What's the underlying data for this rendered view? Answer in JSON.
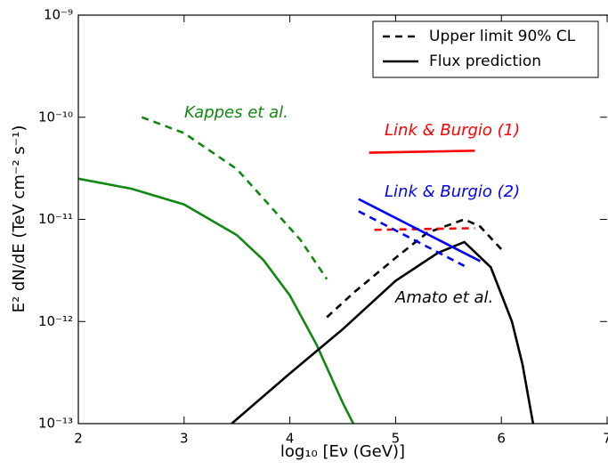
{
  "chart_data": {
    "type": "line",
    "xlabel": "log₁₀ [Eν (GeV)]",
    "ylabel": "E² dN/dE (TeV cm⁻² s⁻¹)",
    "xlim": [
      2,
      7
    ],
    "xticks": [
      2,
      3,
      4,
      5,
      6,
      7
    ],
    "ylim": [
      1e-13,
      1e-09
    ],
    "yscale": "log",
    "yticks": [
      {
        "value": 1e-13,
        "label": "10⁻¹³"
      },
      {
        "value": 1e-12,
        "label": "10⁻¹²"
      },
      {
        "value": 1e-11,
        "label": "10⁻¹¹"
      },
      {
        "value": 1e-10,
        "label": "10⁻¹⁰"
      },
      {
        "value": 1e-09,
        "label": "10⁻⁹"
      }
    ],
    "legend_position": "upper right",
    "legend": [
      {
        "label": "Upper limit 90% CL",
        "style": "dashed"
      },
      {
        "label": "Flux prediction",
        "style": "solid"
      }
    ],
    "annotations": [
      {
        "text": "Kappes et al.",
        "color": "#118811"
      },
      {
        "text": "Link & Burgio (1)",
        "color": "#ff0000"
      },
      {
        "text": "Link & Burgio (2)",
        "color": "#0000ff"
      },
      {
        "text": "Amato et al.",
        "color": "#000000"
      }
    ],
    "series": [
      {
        "color": "#118811",
        "style": "solid",
        "x": [
          2,
          2.5,
          3,
          3.5,
          3.75,
          4,
          4.25,
          4.5,
          4.6
        ],
        "values": [
          2.5e-11,
          2e-11,
          1.4e-11,
          7e-12,
          4e-12,
          1.8e-12,
          6e-13,
          1.6e-13,
          1e-13
        ]
      },
      {
        "color": "#118811",
        "style": "dashed",
        "x": [
          2.6,
          3,
          3.5,
          3.8,
          4.1,
          4.35
        ],
        "values": [
          1e-10,
          7e-11,
          3.1e-11,
          1.4e-11,
          6.3e-12,
          2.6e-12
        ]
      },
      {
        "color": "#000000",
        "style": "dashed",
        "x": [
          4.35,
          4.6,
          5,
          5.3,
          5.65,
          5.8,
          6
        ],
        "values": [
          1.1e-12,
          1.9e-12,
          4.2e-12,
          7.4e-12,
          1e-11,
          8.5e-12,
          5.1e-12
        ]
      },
      {
        "color": "#000000",
        "style": "solid",
        "x": [
          3.45,
          4,
          4.5,
          5,
          5.4,
          5.65,
          5.9,
          6.1,
          6.2,
          6.3
        ],
        "values": [
          1e-13,
          3.1e-13,
          8.4e-13,
          2.5e-12,
          4.7e-12,
          6e-12,
          3.4e-12,
          1e-12,
          3.8e-13,
          1e-13
        ]
      },
      {
        "color": "#ff0000",
        "style": "solid",
        "x": [
          4.75,
          5.75
        ],
        "values": [
          4.5e-11,
          4.7e-11
        ]
      },
      {
        "color": "#ff0000",
        "style": "dashed",
        "x": [
          4.8,
          5.75
        ],
        "values": [
          7.9e-12,
          8.2e-12
        ]
      },
      {
        "color": "#0000ff",
        "style": "solid",
        "x": [
          4.65,
          5.8
        ],
        "values": [
          1.58e-11,
          3.9e-12
        ]
      },
      {
        "color": "#0000ff",
        "style": "dashed",
        "x": [
          4.65,
          5.65
        ],
        "values": [
          1.2e-11,
          3.5e-12
        ]
      }
    ]
  }
}
